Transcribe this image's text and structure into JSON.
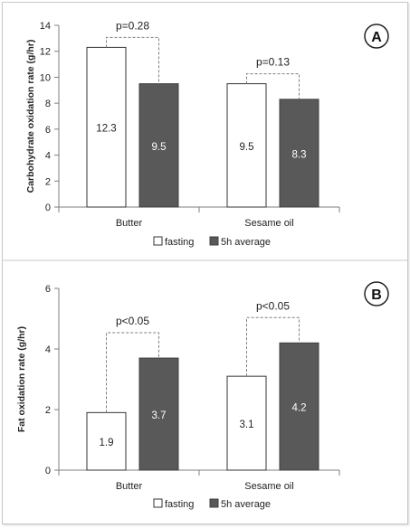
{
  "colors": {
    "fasting": "#ffffff",
    "average": "#595959",
    "axis": "#7f7f7f",
    "text": "#222222",
    "bracket": "#7f7f7f"
  },
  "chart_data": [
    {
      "type": "bar",
      "panel_label": "A",
      "categories": [
        "Butter",
        "Sesame oil"
      ],
      "series": [
        {
          "name": "fasting",
          "values": [
            12.3,
            9.5
          ]
        },
        {
          "name": "5h average",
          "values": [
            9.5,
            8.3
          ]
        }
      ],
      "data_labels": [
        [
          "12.3",
          "9.5"
        ],
        [
          "9.5",
          "8.3"
        ]
      ],
      "ylabel": "Carbohydrate oxidation rate (g/hr)",
      "ylim": [
        0,
        14
      ],
      "yticks": [
        0,
        2,
        4,
        6,
        8,
        10,
        12,
        14
      ],
      "p_values": [
        "p=0.28",
        "p=0.13"
      ],
      "legend": "bottom-center",
      "grid": false
    },
    {
      "type": "bar",
      "panel_label": "B",
      "categories": [
        "Butter",
        "Sesame oil"
      ],
      "series": [
        {
          "name": "fasting",
          "values": [
            1.9,
            3.1
          ]
        },
        {
          "name": "5h average",
          "values": [
            3.7,
            4.2
          ]
        }
      ],
      "data_labels": [
        [
          "1.9",
          "3.1"
        ],
        [
          "3.7",
          "4.2"
        ]
      ],
      "ylabel": "Fat oxidation rate (g/hr)",
      "ylim": [
        0,
        6
      ],
      "yticks": [
        0,
        2,
        4,
        6
      ],
      "p_values": [
        "p<0.05",
        "p<0.05"
      ],
      "legend": "bottom-center",
      "grid": false
    }
  ]
}
